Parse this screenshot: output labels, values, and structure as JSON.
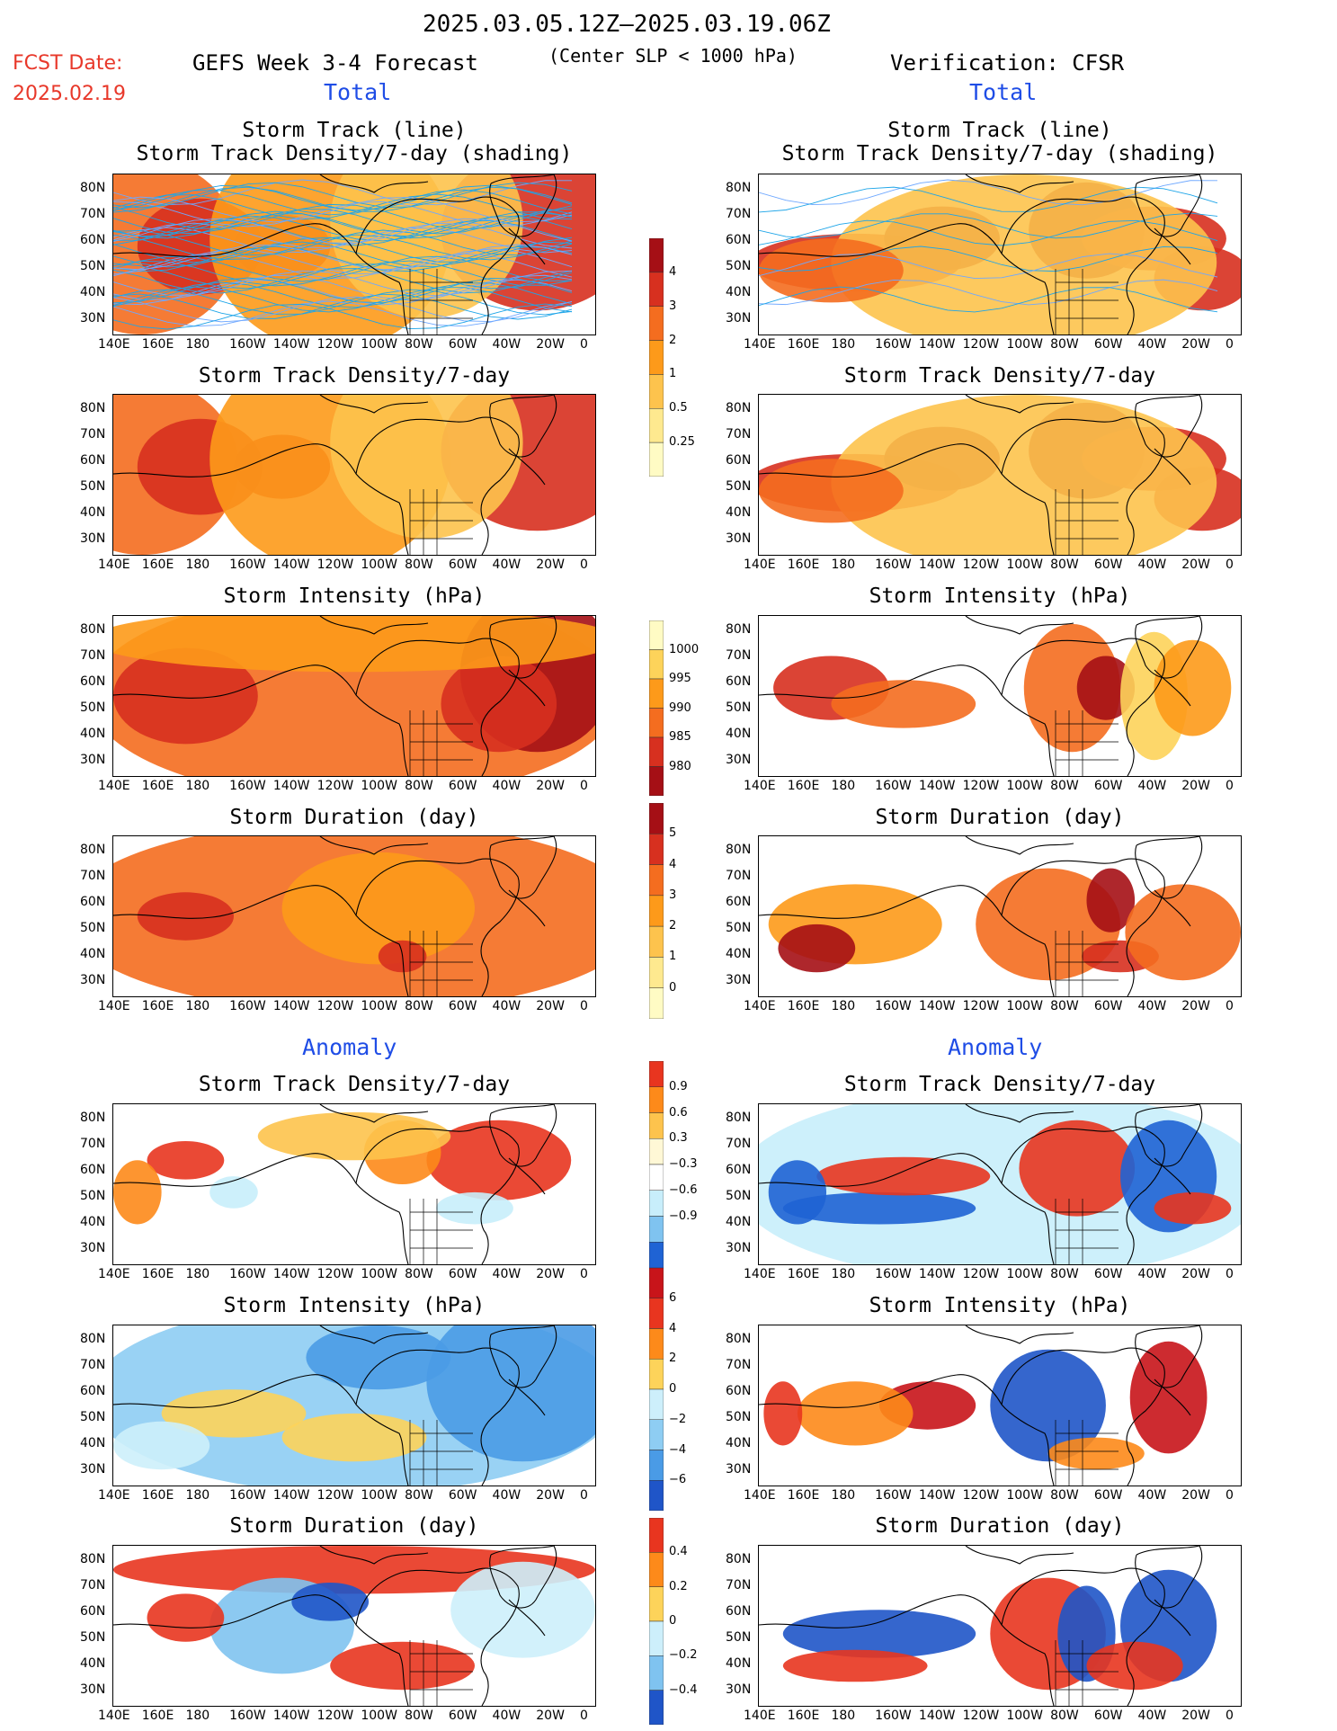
{
  "header": {
    "date_range": "2025.03.05.12Z–2025.03.19.06Z",
    "fcst_label": "FCST Date:",
    "fcst_date": "2025.02.19",
    "left_title": "GEFS Week 3-4 Forecast",
    "center_subtitle": "(Center SLP < 1000 hPa)",
    "right_title": "Verification: CFSR",
    "total_label": "Total",
    "anomaly_label": "Anomaly"
  },
  "panel_titles": {
    "track_line": "Storm Track (line)",
    "track_shading": "Storm Track Density/7-day (shading)",
    "density": "Storm Track Density/7-day",
    "intensity": "Storm Intensity (hPa)",
    "duration": "Storm Duration (day)"
  },
  "axes": {
    "lat_ticks": [
      "80N",
      "70N",
      "60N",
      "50N",
      "40N",
      "30N"
    ],
    "lon_ticks": [
      "140E",
      "160E",
      "180",
      "160W",
      "140W",
      "120W",
      "100W",
      "80W",
      "60W",
      "40W",
      "20W",
      "0"
    ]
  },
  "colorbars": {
    "density_total": {
      "labels": [
        "4",
        "3",
        "2",
        "1",
        "0.5",
        "0.25"
      ],
      "colors": [
        "#a50f15",
        "#d7301f",
        "#f46d1f",
        "#fd9a1a",
        "#fdc34d",
        "#fee98f",
        "#fffbc4"
      ]
    },
    "intensity_total": {
      "labels": [
        "1000",
        "995",
        "990",
        "985",
        "980"
      ],
      "colors": [
        "#fffbc4",
        "#fdd35a",
        "#fd9a1a",
        "#f46d1f",
        "#d7301f",
        "#a50f15"
      ]
    },
    "duration_total": {
      "labels": [
        "5",
        "4",
        "3",
        "2",
        "1",
        "0"
      ],
      "colors": [
        "#a50f15",
        "#d7301f",
        "#f46d1f",
        "#fd9a1a",
        "#fdc34d",
        "#fee98f",
        "#fffbc4"
      ]
    },
    "density_anom": {
      "labels": [
        "0.9",
        "0.6",
        "0.3",
        "−0.3",
        "−0.6",
        "−0.9"
      ],
      "colors": [
        "#e8351f",
        "#fd8a1a",
        "#fdc34d",
        "#fff8d6",
        "#ffffff",
        "#c8eefb",
        "#7fc3f0",
        "#1f63d4"
      ]
    },
    "intensity_anom": {
      "labels": [
        "6",
        "4",
        "2",
        "0",
        "−2",
        "−4",
        "−6"
      ],
      "colors": [
        "#c8141a",
        "#e8351f",
        "#fd8a1a",
        "#fdd35a",
        "#cdeffb",
        "#8ecdf3",
        "#4a9be6",
        "#1f55c8"
      ]
    },
    "duration_anom": {
      "labels": [
        "0.4",
        "0.2",
        "0",
        "−0.2",
        "−0.4"
      ],
      "colors": [
        "#e8351f",
        "#fd8a1a",
        "#fdd35a",
        "#cdeffb",
        "#7fc3f0",
        "#1f55c8"
      ]
    }
  },
  "fields": {
    "gefs_track_total": {
      "blobs": [
        [
          0.06,
          0.45,
          0.2,
          0.55,
          "#f46d1f"
        ],
        [
          0.18,
          0.45,
          0.13,
          0.3,
          "#d7301f"
        ],
        [
          0.35,
          0.45,
          0.1,
          0.2,
          "#d7301f"
        ],
        [
          0.45,
          0.4,
          0.25,
          0.7,
          "#fd9a1a"
        ],
        [
          0.88,
          0.35,
          0.2,
          0.5,
          "#d7301f"
        ],
        [
          0.65,
          0.3,
          0.2,
          0.6,
          "#fdc34d"
        ]
      ]
    },
    "cfsr_track_total": {
      "blobs": [
        [
          0.2,
          0.55,
          0.22,
          0.18,
          "#d7301f"
        ],
        [
          0.38,
          0.4,
          0.12,
          0.2,
          "#a50f15"
        ],
        [
          0.68,
          0.35,
          0.12,
          0.3,
          "#a50f15"
        ],
        [
          0.82,
          0.4,
          0.15,
          0.2,
          "#d7301f"
        ],
        [
          0.92,
          0.65,
          0.1,
          0.2,
          "#d7301f"
        ],
        [
          0.55,
          0.55,
          0.4,
          0.55,
          "#fdc34d"
        ],
        [
          0.15,
          0.6,
          0.15,
          0.2,
          "#f46d1f"
        ]
      ]
    },
    "gefs_intensity_total": {
      "blobs": [
        [
          0.5,
          0.5,
          0.55,
          0.65,
          "#f46d1f"
        ],
        [
          0.15,
          0.5,
          0.15,
          0.3,
          "#d7301f"
        ],
        [
          0.88,
          0.35,
          0.16,
          0.5,
          "#a50f15"
        ],
        [
          0.8,
          0.55,
          0.12,
          0.3,
          "#d7301f"
        ],
        [
          0.5,
          0.15,
          0.55,
          0.2,
          "#fd9a1a"
        ]
      ]
    },
    "cfsr_intensity_total": {
      "blobs": [
        [
          0.15,
          0.45,
          0.12,
          0.2,
          "#d7301f"
        ],
        [
          0.3,
          0.55,
          0.15,
          0.15,
          "#f46d1f"
        ],
        [
          0.65,
          0.45,
          0.1,
          0.4,
          "#f46d1f"
        ],
        [
          0.72,
          0.45,
          0.06,
          0.2,
          "#a50f15"
        ],
        [
          0.82,
          0.5,
          0.07,
          0.4,
          "#fdd35a"
        ],
        [
          0.9,
          0.45,
          0.08,
          0.3,
          "#fd9a1a"
        ]
      ]
    },
    "gefs_duration_total": {
      "blobs": [
        [
          0.5,
          0.5,
          0.6,
          0.6,
          "#f46d1f"
        ],
        [
          0.55,
          0.45,
          0.2,
          0.35,
          "#fd9a1a"
        ],
        [
          0.6,
          0.75,
          0.05,
          0.1,
          "#d7301f"
        ],
        [
          0.15,
          0.5,
          0.1,
          0.15,
          "#d7301f"
        ]
      ]
    },
    "cfsr_duration_total": {
      "blobs": [
        [
          0.2,
          0.55,
          0.18,
          0.25,
          "#fd9a1a"
        ],
        [
          0.12,
          0.7,
          0.08,
          0.15,
          "#a50f15"
        ],
        [
          0.6,
          0.55,
          0.15,
          0.35,
          "#f46d1f"
        ],
        [
          0.73,
          0.4,
          0.05,
          0.2,
          "#a50f15"
        ],
        [
          0.75,
          0.75,
          0.08,
          0.1,
          "#d7301f"
        ],
        [
          0.88,
          0.6,
          0.12,
          0.3,
          "#f46d1f"
        ]
      ]
    },
    "gefs_density_anom": {
      "blobs": [
        [
          0.15,
          0.35,
          0.08,
          0.12,
          "#e8351f"
        ],
        [
          0.8,
          0.35,
          0.15,
          0.25,
          "#e8351f"
        ],
        [
          0.6,
          0.3,
          0.08,
          0.2,
          "#fd8a1a"
        ],
        [
          0.5,
          0.2,
          0.2,
          0.15,
          "#fdc34d"
        ],
        [
          0.25,
          0.55,
          0.05,
          0.1,
          "#c8eefb"
        ],
        [
          0.75,
          0.65,
          0.08,
          0.1,
          "#c8eefb"
        ],
        [
          0.05,
          0.55,
          0.05,
          0.2,
          "#fd8a1a"
        ]
      ]
    },
    "cfsr_density_anom": {
      "blobs": [
        [
          0.5,
          0.5,
          0.55,
          0.6,
          "#c8eefb"
        ],
        [
          0.25,
          0.65,
          0.2,
          0.1,
          "#1f63d4"
        ],
        [
          0.3,
          0.45,
          0.18,
          0.12,
          "#e8351f"
        ],
        [
          0.66,
          0.4,
          0.12,
          0.3,
          "#e8351f"
        ],
        [
          0.85,
          0.45,
          0.1,
          0.35,
          "#1f63d4"
        ],
        [
          0.9,
          0.65,
          0.08,
          0.1,
          "#e8351f"
        ],
        [
          0.08,
          0.55,
          0.06,
          0.2,
          "#1f63d4"
        ]
      ]
    },
    "gefs_intensity_anom": {
      "blobs": [
        [
          0.5,
          0.45,
          0.55,
          0.6,
          "#8ecdf3"
        ],
        [
          0.85,
          0.35,
          0.2,
          0.5,
          "#4a9be6"
        ],
        [
          0.55,
          0.2,
          0.15,
          0.2,
          "#4a9be6"
        ],
        [
          0.25,
          0.55,
          0.15,
          0.15,
          "#fdd35a"
        ],
        [
          0.5,
          0.7,
          0.15,
          0.15,
          "#fdd35a"
        ],
        [
          0.1,
          0.75,
          0.1,
          0.15,
          "#cdeffb"
        ]
      ]
    },
    "cfsr_intensity_anom": {
      "blobs": [
        [
          0.35,
          0.5,
          0.1,
          0.15,
          "#c8141a"
        ],
        [
          0.2,
          0.55,
          0.12,
          0.2,
          "#fd8a1a"
        ],
        [
          0.6,
          0.5,
          0.12,
          0.35,
          "#1f55c8"
        ],
        [
          0.85,
          0.45,
          0.08,
          0.35,
          "#c8141a"
        ],
        [
          0.7,
          0.8,
          0.1,
          0.1,
          "#fd8a1a"
        ],
        [
          0.05,
          0.55,
          0.04,
          0.2,
          "#e8351f"
        ]
      ]
    },
    "gefs_duration_anom": {
      "blobs": [
        [
          0.5,
          0.15,
          0.5,
          0.15,
          "#e8351f"
        ],
        [
          0.35,
          0.5,
          0.15,
          0.3,
          "#7fc3f0"
        ],
        [
          0.15,
          0.45,
          0.08,
          0.15,
          "#e8351f"
        ],
        [
          0.6,
          0.75,
          0.15,
          0.15,
          "#e8351f"
        ],
        [
          0.85,
          0.4,
          0.15,
          0.3,
          "#cdeffb"
        ],
        [
          0.45,
          0.35,
          0.08,
          0.12,
          "#1f55c8"
        ]
      ]
    },
    "cfsr_duration_anom": {
      "blobs": [
        [
          0.25,
          0.55,
          0.2,
          0.15,
          "#1f55c8"
        ],
        [
          0.2,
          0.75,
          0.15,
          0.1,
          "#e8351f"
        ],
        [
          0.6,
          0.55,
          0.12,
          0.35,
          "#e8351f"
        ],
        [
          0.68,
          0.55,
          0.06,
          0.3,
          "#1f55c8"
        ],
        [
          0.85,
          0.5,
          0.1,
          0.35,
          "#1f55c8"
        ],
        [
          0.78,
          0.75,
          0.1,
          0.15,
          "#e8351f"
        ]
      ]
    }
  }
}
